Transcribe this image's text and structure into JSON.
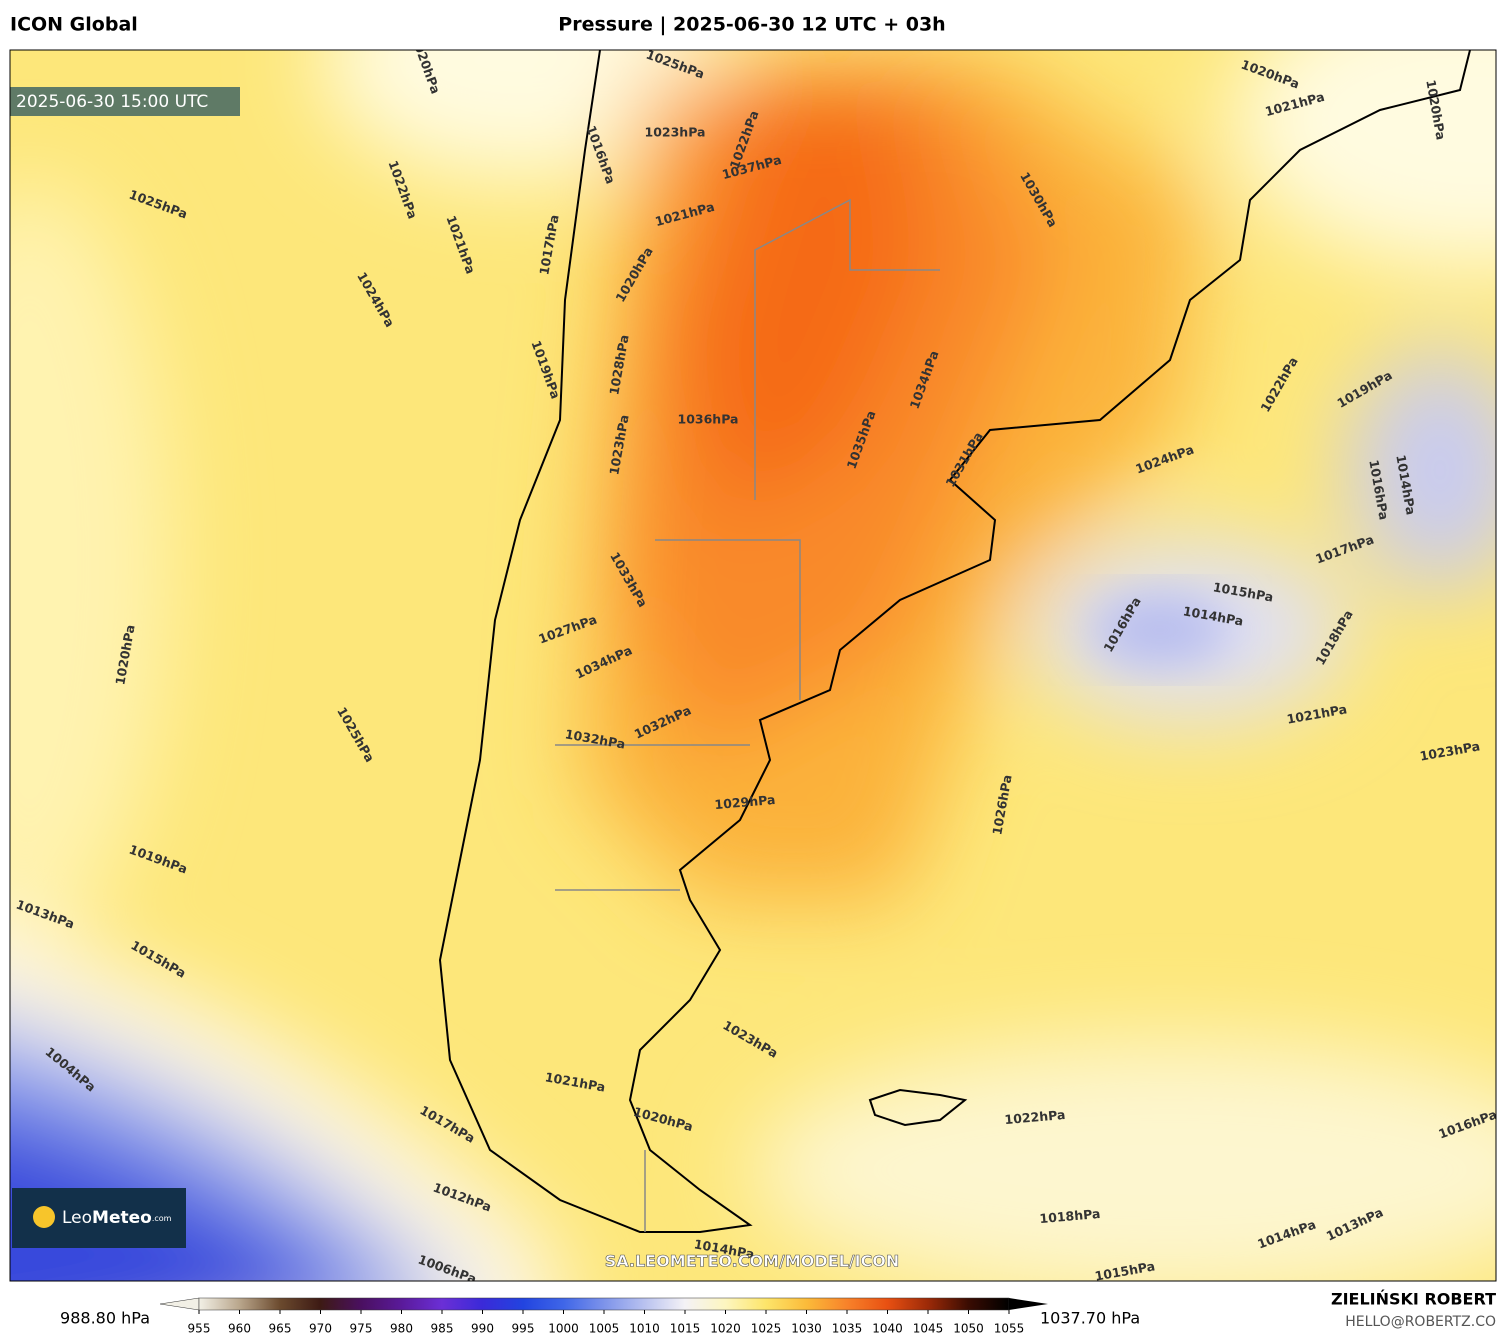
{
  "header": {
    "model": "ICON Global",
    "title": "Pressure | 2025-06-30 12 UTC + 03h"
  },
  "map": {
    "valid_time": "2025-06-30 15:00 UTC",
    "logo": {
      "name_light": "Leo",
      "name_bold": "Meteo",
      "suffix": ".com"
    },
    "watermark": "SA.LEOMETEO.COM/MODEL/ICON",
    "contour_labels": [
      "1025hPa",
      "1022hPa",
      "1021hPa",
      "1024hPa",
      "1020hPa",
      "1017hPa",
      "1019hPa",
      "1025hPa",
      "1023hPa",
      "1016hPa",
      "1022hPa",
      "1037hPa",
      "1021hPa",
      "1020hPa",
      "1028hPa",
      "1023hPa",
      "1036hPa",
      "1035hPa",
      "1034hPa",
      "1031hPa",
      "1030hPa",
      "1020hPa",
      "1021hPa",
      "1020hPa",
      "1022hPa",
      "1019hPa",
      "1024hPa",
      "1016hPa",
      "1014hPa",
      "1017hPa",
      "1015hPa",
      "1014hPa",
      "1016hPa",
      "1018hPa",
      "1021hPa",
      "1023hPa",
      "1033hPa",
      "1027hPa",
      "1034hPa",
      "1032hPa",
      "1032hPa",
      "1029hPa",
      "1026hPa",
      "1020hPa",
      "1025hPa",
      "1019hPa",
      "1013hPa",
      "1015hPa",
      "1023hPa",
      "1021hPa",
      "1020hPa",
      "1022hPa",
      "1017hPa",
      "1012hPa",
      "1018hPa",
      "1014hPa",
      "1014hPa",
      "1013hPa",
      "1015hPa",
      "1016hPa",
      "1006hPa",
      "1004hPa"
    ]
  },
  "colorbar": {
    "min_label": "988.80 hPa",
    "max_label": "1037.70 hPa",
    "ticks": [
      955,
      960,
      965,
      970,
      975,
      980,
      985,
      990,
      995,
      1000,
      1005,
      1010,
      1015,
      1020,
      1025,
      1030,
      1035,
      1040,
      1045,
      1050,
      1055
    ],
    "colors": [
      "#f2f0e6",
      "#b9a68c",
      "#6b4a2e",
      "#3d1a14",
      "#4a1060",
      "#5a1a9a",
      "#6b2fd6",
      "#3a2ad8",
      "#2244e0",
      "#3f66e8",
      "#7d93ea",
      "#b9c2f0",
      "#f4f2f6",
      "#fdf6c0",
      "#fde56a",
      "#fbbb3a",
      "#f8822a",
      "#e85012",
      "#9c2a08",
      "#3a0c02",
      "#000000"
    ]
  },
  "footer": {
    "author": "ZIELIŃSKI ROBERT",
    "contact": "HELLO@ROBERTZ.CO"
  }
}
